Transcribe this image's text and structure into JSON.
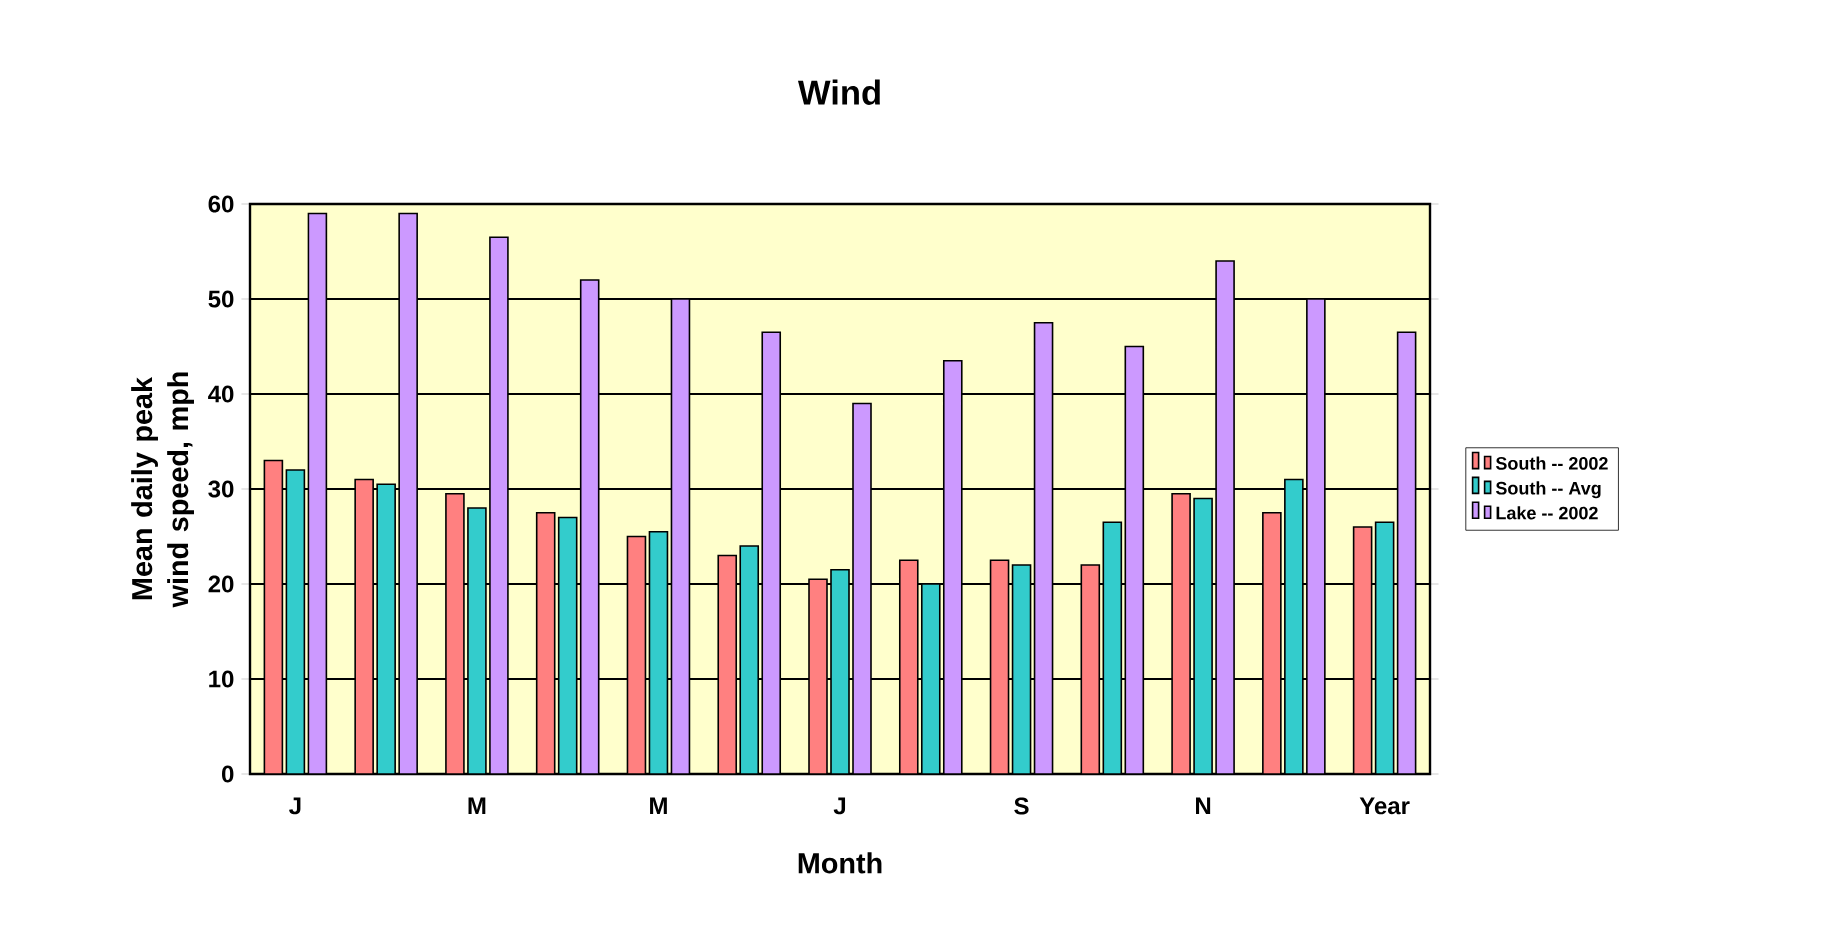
{
  "chart_data": {
    "type": "bar",
    "title": "Wind",
    "xlabel": "Month",
    "ylabel": "Mean daily peak wind speed, mph",
    "categories": [
      "J",
      null,
      "M",
      null,
      "M",
      null,
      "J",
      null,
      "S",
      null,
      "N",
      null,
      "Year"
    ],
    "series": [
      {
        "name": "South -- 2002",
        "color": "#ff8080",
        "values": [
          33,
          31,
          29.5,
          27.5,
          25,
          23,
          20.5,
          22.5,
          22.5,
          22,
          29.5,
          27.5,
          26
        ]
      },
      {
        "name": "South -- Avg",
        "color": "#33cccc",
        "values": [
          32,
          30.5,
          28,
          27,
          25.5,
          24,
          21.5,
          20,
          22,
          26.5,
          29,
          31,
          26.5
        ]
      },
      {
        "name": "Lake -- 2002",
        "color": "#cc99ff",
        "values": [
          59,
          59,
          56.5,
          52,
          50,
          46.5,
          39,
          43.5,
          47.5,
          45,
          54,
          50,
          46.5
        ]
      }
    ],
    "ylim": [
      0,
      60
    ],
    "yticks": [
      0,
      10,
      20,
      30,
      40,
      50,
      60
    ],
    "grid": "y",
    "legend": "right"
  }
}
